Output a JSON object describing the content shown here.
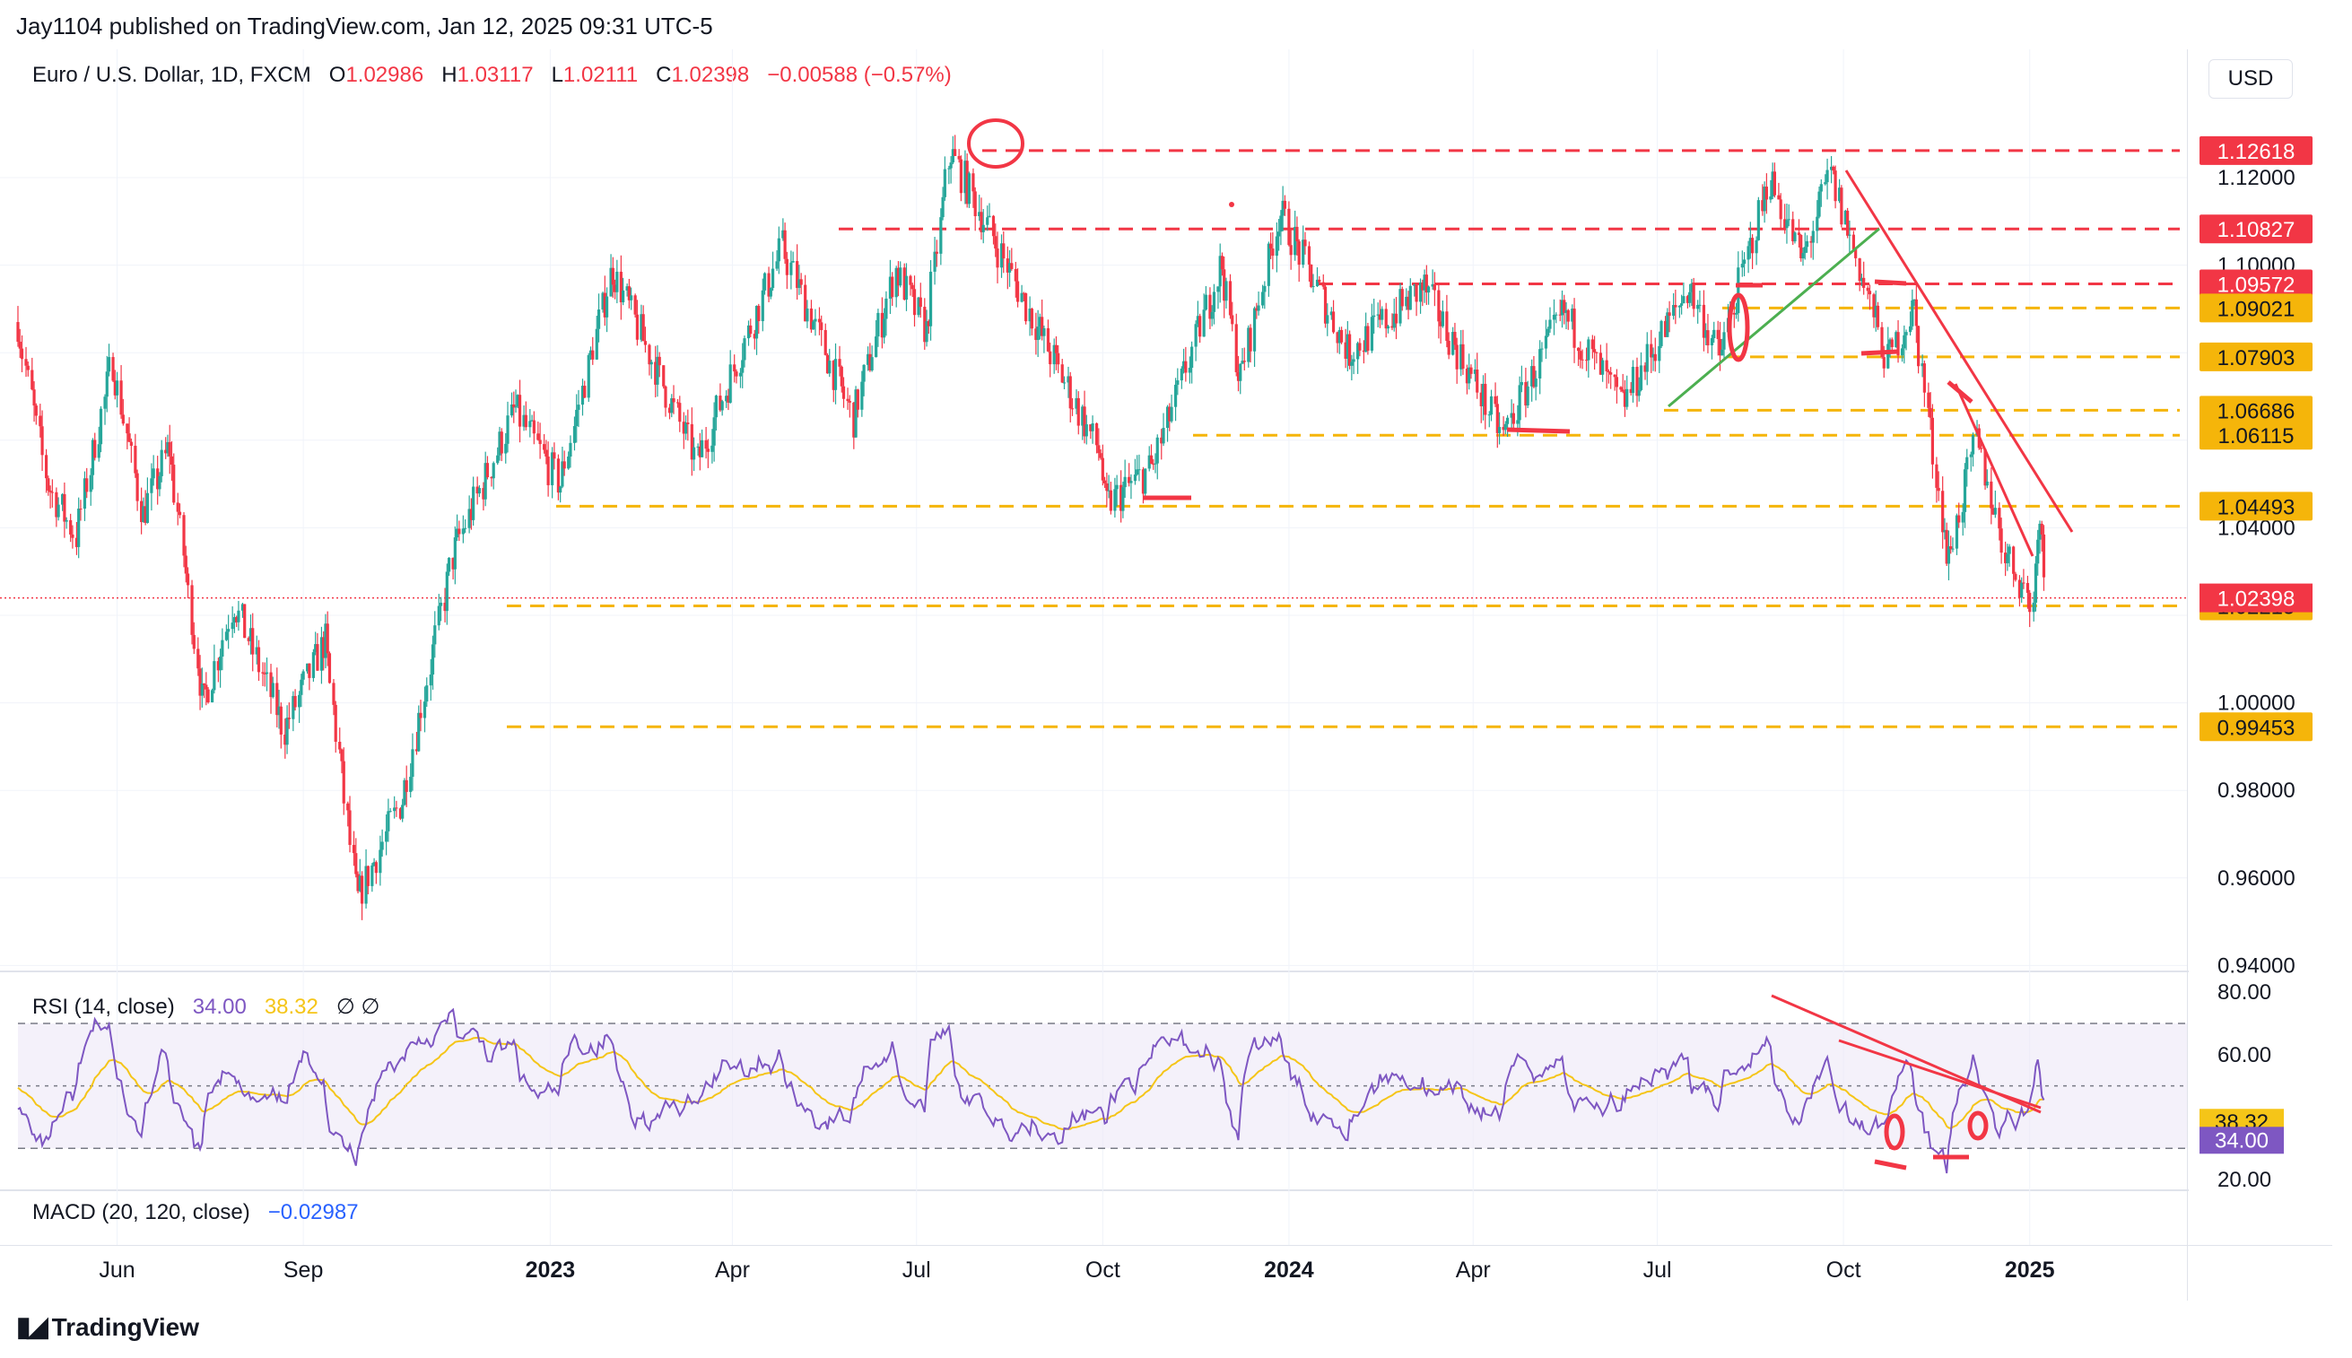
{
  "header": {
    "published": "Jay1104 published on TradingView.com, Jan 12, 2025 09:31 UTC-5"
  },
  "legend": {
    "symbol": "Euro / U.S. Dollar, 1D, FXCM",
    "o_label": "O",
    "o_value": "1.02986",
    "h_label": "H",
    "h_value": "1.03117",
    "l_label": "L",
    "l_value": "1.02111",
    "c_label": "C",
    "c_value": "1.02398",
    "change": "−0.00588 (−0.57%)"
  },
  "currency_button": "USD",
  "rsi_legend": {
    "label": "RSI (14, close)",
    "rsi": "34.00",
    "ma": "38.32",
    "extra": "∅ ∅"
  },
  "macd_legend": {
    "label": "MACD (20, 120, close)",
    "value": "−0.02987"
  },
  "footer": {
    "brand": "TradingView"
  },
  "colors": {
    "up": "#26a69a",
    "down": "#f23645",
    "red_level": "#f23645",
    "yellow_level": "#f5b50a",
    "rsi": "#7e57c2",
    "rsi_ma": "#f5c518",
    "trend_green": "#4caf50",
    "macd": "#2962ff"
  },
  "chart_data": [
    {
      "type": "candlestick",
      "title": "Euro / U.S. Dollar, 1D, FXCM",
      "x_ticks": [
        "Jun",
        "Sep",
        "2023",
        "Apr",
        "Jul",
        "Oct",
        "2024",
        "Apr",
        "Jul",
        "Oct",
        "2025"
      ],
      "x_tick_dates": [
        "2022-06-01",
        "2022-09-01",
        "2023-01-01",
        "2023-04-01",
        "2023-07-01",
        "2023-10-01",
        "2024-01-01",
        "2024-04-01",
        "2024-07-01",
        "2024-10-01",
        "2025-01-01"
      ],
      "y_ticks": [
        "1.12000",
        "1.10000",
        "1.04000",
        "1.00000",
        "0.98000",
        "0.96000",
        "0.94000"
      ],
      "ylim": [
        0.93,
        1.14
      ],
      "price_path": [
        [
          "2022-04-13",
          1.087
        ],
        [
          "2022-04-28",
          1.05
        ],
        [
          "2022-05-12",
          1.038
        ],
        [
          "2022-05-30",
          1.078
        ],
        [
          "2022-06-14",
          1.043
        ],
        [
          "2022-06-27",
          1.058
        ],
        [
          "2022-07-14",
          1.0
        ],
        [
          "2022-07-29",
          1.023
        ],
        [
          "2022-08-23",
          0.994
        ],
        [
          "2022-09-12",
          1.014
        ],
        [
          "2022-09-28",
          0.955
        ],
        [
          "2022-10-20",
          0.978
        ],
        [
          "2022-11-15",
          1.035
        ],
        [
          "2022-12-15",
          1.067
        ],
        [
          "2023-01-06",
          1.05
        ],
        [
          "2023-02-01",
          1.099
        ],
        [
          "2023-03-15",
          1.055
        ],
        [
          "2023-04-26",
          1.104
        ],
        [
          "2023-05-31",
          1.065
        ],
        [
          "2023-06-21",
          1.099
        ],
        [
          "2023-07-06",
          1.085
        ],
        [
          "2023-07-18",
          1.126
        ],
        [
          "2023-08-31",
          1.085
        ],
        [
          "2023-09-30",
          1.057
        ],
        [
          "2023-10-03",
          1.045
        ],
        [
          "2023-10-26",
          1.054
        ],
        [
          "2023-11-29",
          1.1
        ],
        [
          "2023-12-08",
          1.074
        ],
        [
          "2023-12-28",
          1.112
        ],
        [
          "2024-01-31",
          1.08
        ],
        [
          "2024-03-08",
          1.095
        ],
        [
          "2024-04-16",
          1.061
        ],
        [
          "2024-05-16",
          1.089
        ],
        [
          "2024-06-14",
          1.068
        ],
        [
          "2024-07-17",
          1.095
        ],
        [
          "2024-08-01",
          1.079
        ],
        [
          "2024-08-26",
          1.12
        ],
        [
          "2024-09-11",
          1.101
        ],
        [
          "2024-09-25",
          1.121
        ],
        [
          "2024-10-23",
          1.078
        ],
        [
          "2024-11-05",
          1.09
        ],
        [
          "2024-11-22",
          1.033
        ],
        [
          "2024-12-06",
          1.06
        ],
        [
          "2024-12-20",
          1.035
        ],
        [
          "2025-01-03",
          1.022
        ],
        [
          "2025-01-06",
          1.043
        ],
        [
          "2025-01-10",
          1.024
        ]
      ],
      "price_levels": [
        {
          "value": 1.12618,
          "label": "1.12618",
          "color": "red"
        },
        {
          "value": 1.10827,
          "label": "1.10827",
          "color": "red"
        },
        {
          "value": 1.09572,
          "label": "1.09572",
          "color": "red"
        },
        {
          "value": 1.09021,
          "label": "1.09021",
          "color": "yellow"
        },
        {
          "value": 1.07903,
          "label": "1.07903",
          "color": "yellow"
        },
        {
          "value": 1.06686,
          "label": "1.06686",
          "color": "yellow"
        },
        {
          "value": 1.06115,
          "label": "1.06115",
          "color": "yellow"
        },
        {
          "value": 1.04493,
          "label": "1.04493",
          "color": "yellow"
        },
        {
          "value": 1.02215,
          "label": "1.02215",
          "color": "yellow"
        },
        {
          "value": 0.99453,
          "label": "0.99453",
          "color": "yellow"
        }
      ],
      "last_price": {
        "value": 1.02398,
        "label": "1.02398"
      }
    },
    {
      "type": "line",
      "title": "RSI (14, close)",
      "y_ticks": [
        "80.00",
        "60.00",
        "20.00"
      ],
      "ylim": [
        16,
        82
      ],
      "bands": [
        30,
        50,
        70
      ],
      "series": [
        {
          "name": "RSI",
          "last": 34.0,
          "last_label": "34.00"
        },
        {
          "name": "RSI-based MA",
          "last": 38.32,
          "last_label": "38.32"
        }
      ]
    }
  ]
}
